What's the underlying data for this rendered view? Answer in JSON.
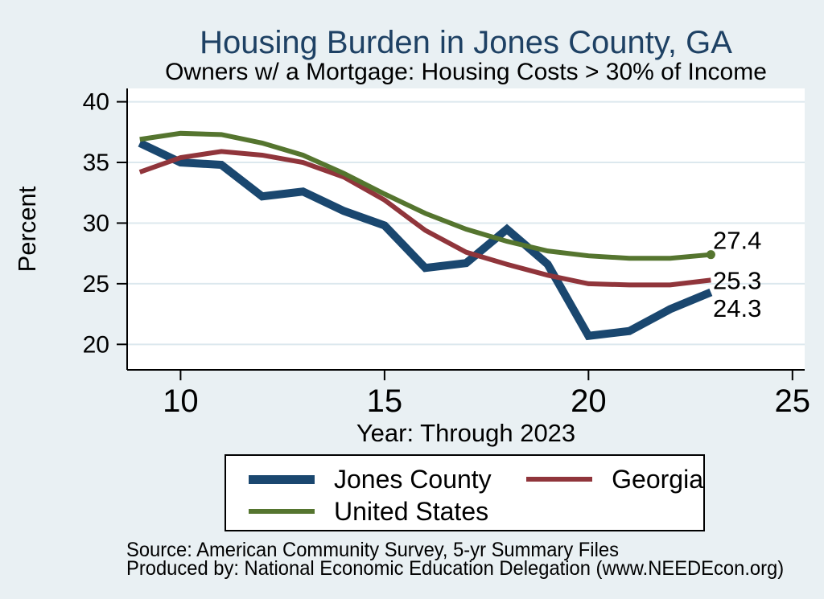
{
  "chart_data": {
    "type": "line",
    "title": "Housing Burden in Jones County, GA",
    "subtitle": "Owners w/ a Mortgage: Housing Costs > 30% of Income",
    "ylabel": "Percent",
    "xlabel": "Year: Through 2023",
    "x_years": [
      2009,
      2010,
      2011,
      2012,
      2013,
      2014,
      2015,
      2016,
      2017,
      2018,
      2019,
      2020,
      2021,
      2022,
      2023
    ],
    "x_plotted_as": [
      9,
      10,
      11,
      12,
      13,
      14,
      15,
      16,
      17,
      18,
      19,
      20,
      21,
      22,
      23
    ],
    "series": [
      {
        "name": "Jones County",
        "color": "#1a476f",
        "line_width": 10,
        "end_marker": false,
        "values": [
          36.6,
          35.0,
          34.8,
          32.2,
          32.6,
          31.0,
          29.8,
          26.3,
          26.7,
          29.5,
          26.6,
          20.7,
          21.1,
          22.9,
          24.3
        ]
      },
      {
        "name": "Georgia",
        "color": "#90353b",
        "line_width": 6,
        "end_marker": false,
        "values": [
          34.2,
          35.4,
          35.9,
          35.6,
          35.0,
          33.8,
          31.9,
          29.4,
          27.6,
          26.6,
          25.7,
          25.0,
          24.9,
          24.9,
          25.3
        ]
      },
      {
        "name": "United States",
        "color": "#55752f",
        "line_width": 6,
        "end_marker": true,
        "values": [
          36.9,
          37.4,
          37.3,
          36.6,
          35.6,
          34.1,
          32.4,
          30.8,
          29.5,
          28.5,
          27.7,
          27.3,
          27.1,
          27.1,
          27.4
        ]
      }
    ],
    "end_labels": [
      {
        "text": "27.4",
        "at_value": 28.6
      },
      {
        "text": "25.3",
        "at_value": 25.3
      },
      {
        "text": "24.3",
        "at_value": 23.0
      }
    ],
    "x_ticks": [
      10,
      15,
      20,
      25
    ],
    "x_tick_labels": [
      "10",
      "15",
      "20",
      "25"
    ],
    "y_ticks": [
      20,
      25,
      30,
      35,
      40
    ],
    "y_tick_labels": [
      "20",
      "25",
      "30",
      "35",
      "40"
    ],
    "xlim": [
      8.69,
      25.3
    ],
    "ylim": [
      17.9,
      41.1
    ],
    "grid": true,
    "legend_position": "bottom",
    "colors": {
      "background": "#e9f0f3",
      "plot_background": "#ffffff",
      "gridline": "#dce8ee",
      "axis": "#000000",
      "title_text": "#1e4164",
      "body_text": "#000000"
    }
  },
  "footer": {
    "line1": "Source: American Community Survey, 5-yr Summary Files",
    "line2": "Produced by: National Economic Education Delegation (www.NEEDEcon.org)"
  }
}
